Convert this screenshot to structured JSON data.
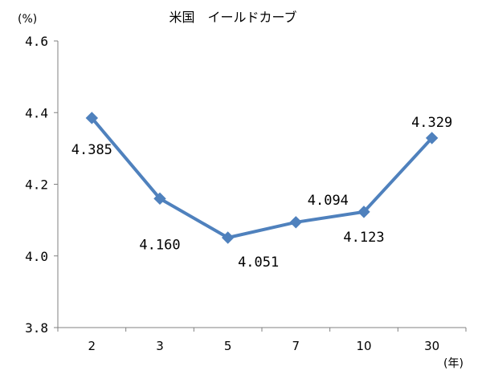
{
  "chart_data": {
    "type": "line",
    "title": "米国　イールドカーブ",
    "y_unit": "(%)",
    "x_unit": "(年)",
    "categories": [
      "2",
      "3",
      "5",
      "7",
      "10",
      "30"
    ],
    "values": [
      4.385,
      4.16,
      4.051,
      4.094,
      4.123,
      4.329
    ],
    "value_labels": [
      "4.385",
      "4.160",
      "4.051",
      "4.094",
      "4.123",
      "4.329"
    ],
    "ylim": [
      3.8,
      4.6
    ],
    "yticks": [
      3.8,
      4.0,
      4.2,
      4.4,
      4.6
    ],
    "ytick_labels": [
      "3.8",
      "4.0",
      "4.2",
      "4.4",
      "4.6"
    ],
    "grid": false,
    "marker": "diamond",
    "color": "#4F81BD"
  }
}
